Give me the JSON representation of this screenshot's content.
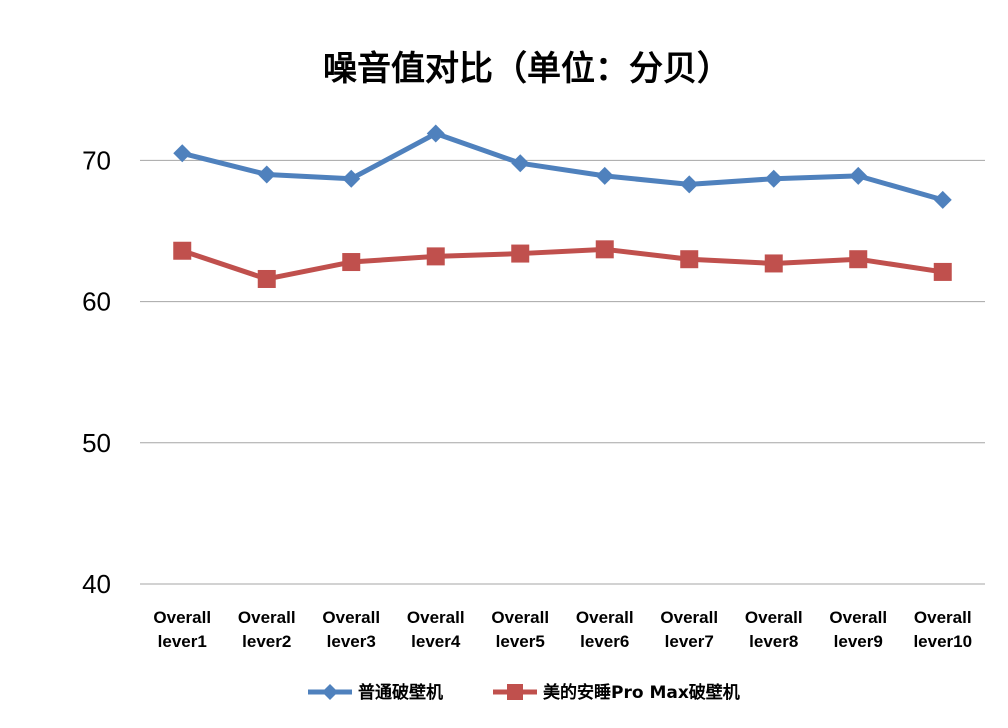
{
  "chart_data": {
    "type": "line",
    "title": "噪音值对比（单位：分贝）",
    "categories": [
      [
        "Overall",
        "lever1"
      ],
      [
        "Overall",
        "lever2"
      ],
      [
        "Overall",
        "lever3"
      ],
      [
        "Overall",
        "lever4"
      ],
      [
        "Overall",
        "lever5"
      ],
      [
        "Overall",
        "lever6"
      ],
      [
        "Overall",
        "lever7"
      ],
      [
        "Overall",
        "lever8"
      ],
      [
        "Overall",
        "lever9"
      ],
      [
        "Overall",
        "lever10"
      ]
    ],
    "ylim": [
      40,
      73
    ],
    "yticks": [
      40,
      50,
      60,
      70
    ],
    "grid": true,
    "legend_position": "bottom",
    "series": [
      {
        "name": "普通破壁机",
        "color": "#4f81bd",
        "marker": "diamond",
        "values": [
          70.5,
          69.0,
          68.7,
          71.9,
          69.8,
          68.9,
          68.3,
          68.7,
          68.9,
          67.2
        ]
      },
      {
        "name": "美的安睡Pro Max破壁机",
        "color": "#c0504d",
        "marker": "square",
        "values": [
          63.6,
          61.6,
          62.8,
          63.2,
          63.4,
          63.7,
          63.0,
          62.7,
          63.0,
          62.1
        ]
      }
    ]
  }
}
